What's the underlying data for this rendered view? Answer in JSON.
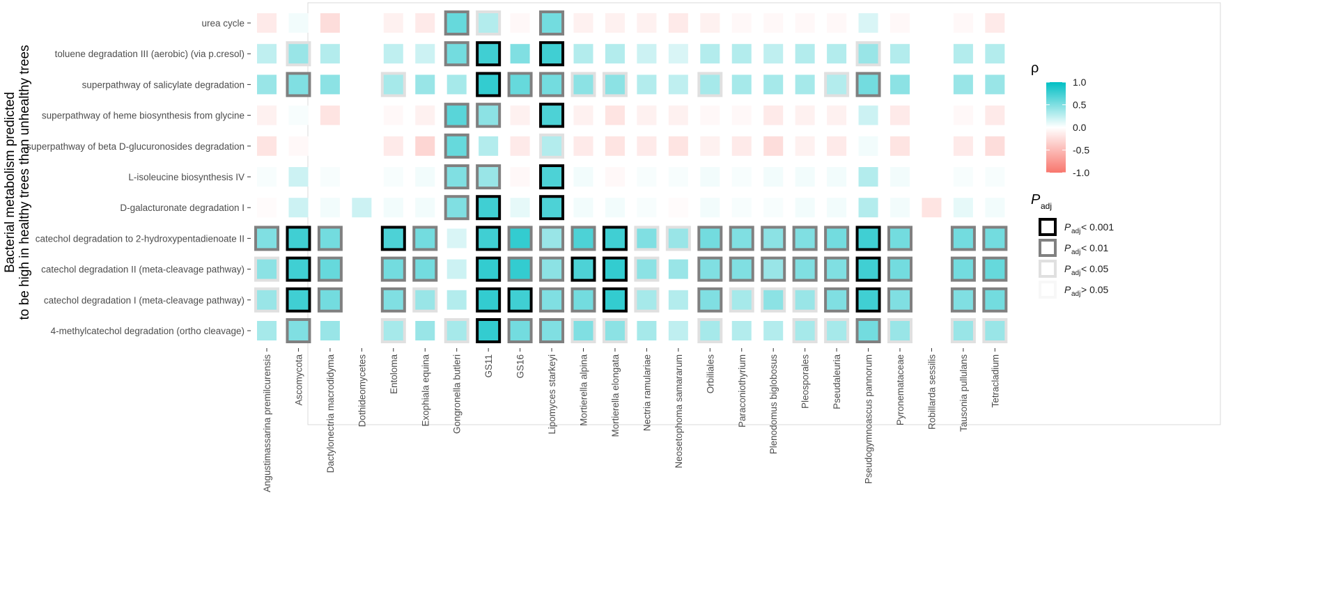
{
  "chart_data": {
    "type": "heatmap",
    "title": "",
    "ylabel": "Bacterial metabolism predicted to be high in healthy trees than unhealthy trees",
    "ylabel_lines": [
      "Bacterial metabolism predicted",
      "to be high in healthy trees than unhealthy trees"
    ],
    "xlabel": "",
    "x_categories": [
      "Angustimassarina premilcurensis",
      "Ascomycota",
      "Dactylonectria macrodidyma",
      "Dothideomycetes",
      "Entoloma",
      "Exophiala equina",
      "Gongronella butleri",
      "GS11",
      "GS16",
      "Lipomyces starkeyi",
      "Mortierella alpina",
      "Mortierella elongata",
      "Nectria ramulariae",
      "Neosetophoma samararum",
      "Orbiliales",
      "Paraconiothyrium",
      "Plenodomus biglobosus",
      "Pleosporales",
      "Pseudaleuria",
      "Pseudogymnoascus pannorum",
      "Pyronemataceae",
      "Robillarda sessilis",
      "Tausonia pullulans",
      "Tetracladium"
    ],
    "y_categories": [
      "urea cycle",
      "toluene degradation III (aerobic) (via p.cresol)",
      "superpathway of salicylate degradation",
      "superpathway of heme biosynthesis from glycine",
      "superpathway of beta D-glucuronosides degradation",
      "L-isoleucine biosynthesis IV",
      "D-galacturonate degradation I",
      "catechol degradation to 2-hydroxypentadienoate II",
      "catechol degradation II (meta-cleavage pathway)",
      "catechol degradation I (meta-cleavage pathway)",
      "4-methylcatechol degradation (ortho cleavage)"
    ],
    "rho": [
      [
        -0.15,
        0.05,
        -0.25,
        null,
        -0.1,
        -0.15,
        0.6,
        0.3,
        -0.05,
        0.55,
        -0.1,
        -0.1,
        -0.1,
        -0.15,
        -0.1,
        -0.05,
        -0.05,
        -0.05,
        -0.05,
        0.15,
        -0.05,
        null,
        -0.05,
        -0.15
      ],
      [
        0.25,
        0.4,
        0.3,
        null,
        0.25,
        0.2,
        0.55,
        0.75,
        0.5,
        0.75,
        0.3,
        0.3,
        0.2,
        0.15,
        0.3,
        0.3,
        0.25,
        0.3,
        0.3,
        0.4,
        0.3,
        null,
        0.3,
        0.3
      ],
      [
        0.4,
        0.5,
        0.45,
        null,
        0.35,
        0.4,
        0.35,
        0.8,
        0.6,
        0.55,
        0.45,
        0.45,
        0.3,
        0.25,
        0.35,
        0.35,
        0.35,
        0.35,
        0.3,
        0.55,
        0.45,
        null,
        0.4,
        0.4
      ],
      [
        -0.1,
        0.03,
        -0.2,
        null,
        -0.05,
        -0.1,
        0.65,
        0.45,
        -0.1,
        0.7,
        -0.1,
        -0.2,
        -0.1,
        -0.1,
        -0.05,
        -0.05,
        -0.15,
        -0.1,
        -0.1,
        0.2,
        -0.15,
        null,
        -0.05,
        -0.15
      ],
      [
        -0.2,
        -0.05,
        null,
        null,
        -0.15,
        -0.3,
        0.6,
        0.3,
        -0.15,
        0.3,
        -0.15,
        -0.2,
        -0.15,
        -0.2,
        -0.1,
        -0.15,
        -0.25,
        -0.1,
        -0.15,
        0.05,
        -0.2,
        null,
        -0.15,
        -0.25
      ],
      [
        0.03,
        0.2,
        0.03,
        null,
        0.03,
        0.05,
        0.5,
        0.4,
        -0.05,
        0.7,
        0.05,
        -0.05,
        0.03,
        0.03,
        0.05,
        0.03,
        0.05,
        0.05,
        0.05,
        0.3,
        0.05,
        null,
        0.03,
        0.03
      ],
      [
        -0.03,
        0.2,
        0.05,
        0.2,
        0.05,
        0.05,
        0.5,
        0.75,
        0.1,
        0.7,
        0.05,
        0.05,
        0.03,
        -0.03,
        0.05,
        0.03,
        0.03,
        0.05,
        0.05,
        0.3,
        0.05,
        -0.2,
        0.1,
        0.05
      ],
      [
        0.5,
        0.75,
        0.55,
        null,
        0.7,
        0.55,
        0.15,
        0.75,
        0.8,
        0.4,
        0.7,
        0.75,
        0.5,
        0.4,
        0.55,
        0.5,
        0.45,
        0.5,
        0.55,
        0.75,
        0.55,
        null,
        0.55,
        0.55
      ],
      [
        0.45,
        0.75,
        0.6,
        null,
        0.55,
        0.55,
        0.2,
        0.8,
        0.8,
        0.45,
        0.7,
        0.8,
        0.45,
        0.4,
        0.5,
        0.5,
        0.4,
        0.5,
        0.5,
        0.75,
        0.55,
        null,
        0.55,
        0.6
      ],
      [
        0.4,
        0.75,
        0.55,
        null,
        0.5,
        0.4,
        0.3,
        0.8,
        0.75,
        0.5,
        0.55,
        0.8,
        0.35,
        0.3,
        0.5,
        0.35,
        0.45,
        0.4,
        0.5,
        0.75,
        0.5,
        null,
        0.5,
        0.55
      ],
      [
        0.35,
        0.5,
        0.4,
        null,
        0.35,
        0.4,
        0.35,
        0.8,
        0.55,
        0.5,
        0.5,
        0.45,
        0.35,
        0.25,
        0.35,
        0.3,
        0.3,
        0.35,
        0.35,
        0.55,
        0.4,
        null,
        0.4,
        0.4
      ]
    ],
    "padj_class": [
      [
        0,
        0,
        0,
        0,
        0,
        0,
        2,
        1,
        0,
        2,
        0,
        0,
        0,
        0,
        0,
        0,
        0,
        0,
        0,
        0,
        0,
        0,
        0,
        0
      ],
      [
        0,
        1,
        0,
        0,
        0,
        0,
        2,
        3,
        0,
        3,
        0,
        0,
        0,
        0,
        0,
        0,
        0,
        0,
        0,
        1,
        0,
        0,
        0,
        0
      ],
      [
        0,
        2,
        0,
        0,
        1,
        0,
        0,
        3,
        2,
        2,
        1,
        1,
        0,
        0,
        1,
        0,
        0,
        0,
        1,
        2,
        0,
        0,
        0,
        0
      ],
      [
        0,
        0,
        0,
        0,
        0,
        0,
        2,
        2,
        0,
        3,
        0,
        0,
        0,
        0,
        0,
        0,
        0,
        0,
        0,
        0,
        0,
        0,
        0,
        0
      ],
      [
        0,
        0,
        0,
        0,
        0,
        0,
        2,
        0,
        0,
        1,
        0,
        0,
        0,
        0,
        0,
        0,
        0,
        0,
        0,
        0,
        0,
        0,
        0,
        0
      ],
      [
        0,
        0,
        0,
        0,
        0,
        0,
        2,
        2,
        0,
        3,
        0,
        0,
        0,
        0,
        0,
        0,
        0,
        0,
        0,
        0,
        0,
        0,
        0,
        0
      ],
      [
        0,
        0,
        0,
        0,
        0,
        0,
        2,
        3,
        0,
        3,
        0,
        0,
        0,
        0,
        0,
        0,
        0,
        0,
        0,
        0,
        0,
        0,
        0,
        0
      ],
      [
        2,
        3,
        2,
        0,
        3,
        2,
        0,
        3,
        2,
        2,
        2,
        3,
        1,
        1,
        2,
        2,
        2,
        2,
        2,
        3,
        2,
        0,
        2,
        2
      ],
      [
        1,
        3,
        2,
        0,
        2,
        2,
        0,
        3,
        2,
        2,
        3,
        3,
        1,
        0,
        2,
        2,
        2,
        2,
        2,
        3,
        2,
        0,
        2,
        2
      ],
      [
        1,
        3,
        2,
        0,
        2,
        1,
        0,
        3,
        3,
        2,
        2,
        3,
        1,
        0,
        2,
        1,
        1,
        1,
        2,
        3,
        2,
        0,
        2,
        2
      ],
      [
        0,
        2,
        0,
        0,
        1,
        0,
        1,
        3,
        2,
        2,
        1,
        1,
        0,
        0,
        1,
        0,
        0,
        1,
        1,
        2,
        1,
        0,
        1,
        1
      ]
    ],
    "colorbar": {
      "title": "ρ",
      "range": [
        -1.0,
        1.0
      ],
      "ticks": [
        "1.0",
        "0.5",
        "0.0",
        "-0.5",
        "-1.0"
      ],
      "low_color": "#f8766d",
      "mid_color": "#ffffff",
      "high_color": "#00bfc4"
    },
    "size_legend": {
      "title_main": "P",
      "title_sub": "adj",
      "entries": [
        {
          "main": "P",
          "sub": "adj",
          "rest": " < 0.001",
          "stroke": "#000000"
        },
        {
          "main": "P",
          "sub": "adj",
          "rest": " < 0.01",
          "stroke": "#808080"
        },
        {
          "main": "P",
          "sub": "adj",
          "rest": " < 0.05",
          "stroke": "#e0e0e0"
        },
        {
          "main": "P",
          "sub": "adj",
          "rest": " > 0.05",
          "stroke": "#f7f7f7"
        }
      ]
    }
  }
}
